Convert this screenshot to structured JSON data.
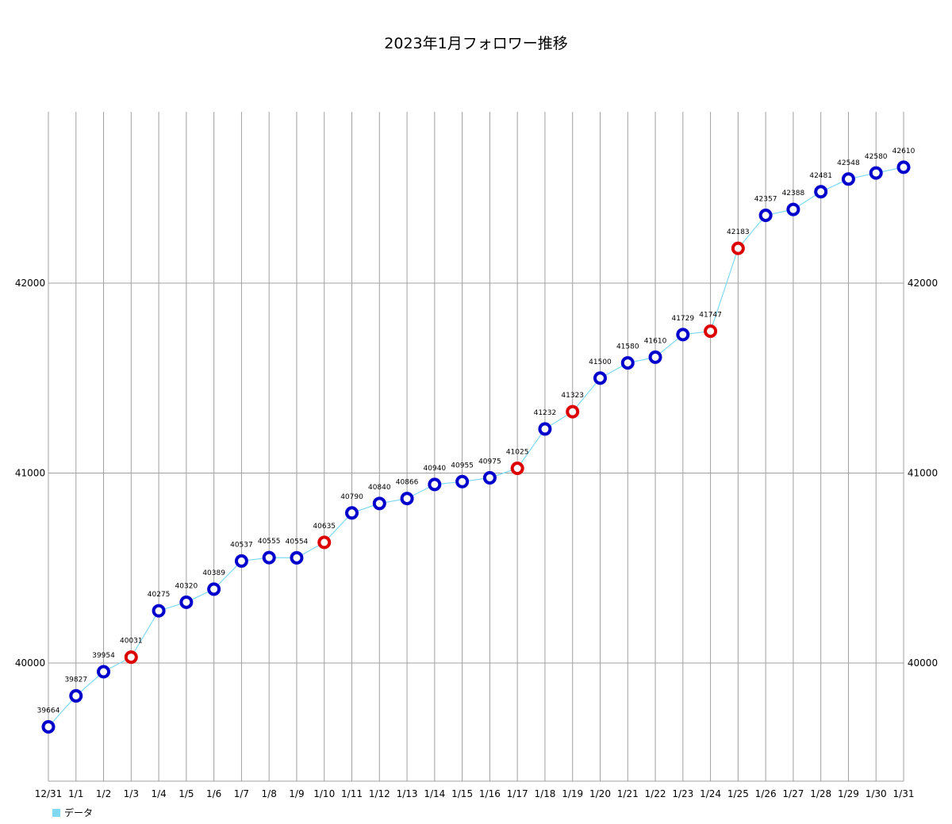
{
  "chart_data": {
    "type": "line",
    "title": "2023年1月フォロワー推移",
    "categories": [
      "12/31",
      "1/1",
      "1/2",
      "1/3",
      "1/4",
      "1/5",
      "1/6",
      "1/7",
      "1/8",
      "1/9",
      "1/10",
      "1/11",
      "1/12",
      "1/13",
      "1/14",
      "1/15",
      "1/16",
      "1/17",
      "1/18",
      "1/19",
      "1/20",
      "1/21",
      "1/22",
      "1/23",
      "1/24",
      "1/25",
      "1/26",
      "1/27",
      "1/28",
      "1/29",
      "1/30",
      "1/31"
    ],
    "series": [
      {
        "name": "データ",
        "values": [
          39664,
          39827,
          39954,
          40031,
          40275,
          40320,
          40389,
          40537,
          40555,
          40554,
          40635,
          40790,
          40840,
          40866,
          40940,
          40955,
          40975,
          41025,
          41232,
          41323,
          41500,
          41580,
          41610,
          41729,
          41747,
          42183,
          42357,
          42388,
          42481,
          42548,
          42580,
          42610
        ],
        "highlighted_indices": [
          3,
          10,
          17,
          19,
          24,
          25
        ]
      }
    ],
    "y_ticks": [
      40000,
      41000,
      42000
    ],
    "ylim": [
      39480,
      43000
    ],
    "grid": true,
    "legend_position": "bottom-left",
    "colors": {
      "line": "#7fd9f2",
      "marker": "#0000cc",
      "highlight": "#dd0000",
      "grid": "#a0a0a0"
    }
  }
}
